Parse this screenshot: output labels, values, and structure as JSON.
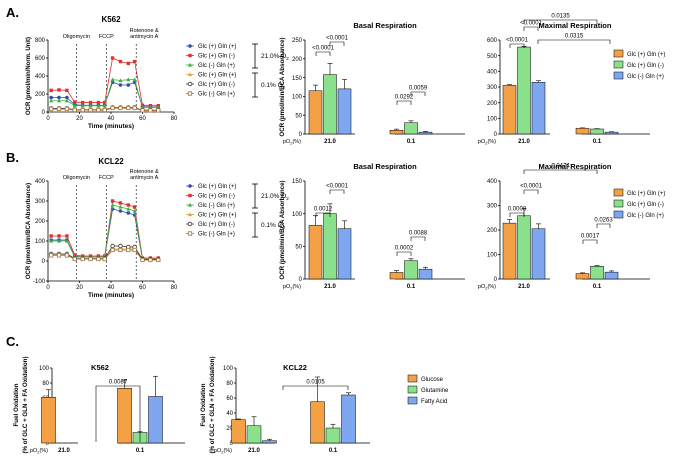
{
  "panels": {
    "A": {
      "label": "A.",
      "cell_line": "K562",
      "timecourse": {
        "type": "line",
        "ylabel": "OCR (pmol/min/Norm. Unit)",
        "xlabel": "Time (minutes)",
        "ylim": [
          0,
          800
        ],
        "yticks": [
          0,
          200,
          400,
          600,
          800
        ],
        "xlim": [
          0,
          80
        ],
        "xticks": [
          0,
          20,
          40,
          60,
          80
        ],
        "injections": [
          {
            "label": "Oligomycin",
            "x": 18
          },
          {
            "label": "FCCP",
            "x": 37
          },
          {
            "label": "Rotenone &",
            "label2": "antimycin A",
            "x": 56
          }
        ],
        "x": [
          2,
          7,
          12,
          17,
          22,
          27,
          32,
          36,
          41,
          46,
          51,
          55,
          60,
          65,
          70
        ],
        "series": [
          {
            "name": "Glc (+) Gln (+)",
            "color": "#2f4fa8",
            "marker": "circle",
            "values": [
              160,
              160,
              160,
              80,
              75,
              75,
              75,
              75,
              330,
              300,
              300,
              330,
              60,
              55,
              55
            ]
          },
          {
            "name": "Glc (+) Gln (-)",
            "color": "#e03030",
            "marker": "square",
            "values": [
              240,
              245,
              240,
              110,
              105,
              105,
              105,
              105,
              600,
              560,
              540,
              560,
              75,
              70,
              70
            ]
          },
          {
            "name": "Glc (-) Gln (+)",
            "color": "#3cb043",
            "marker": "triangle",
            "values": [
              125,
              125,
              125,
              70,
              70,
              70,
              70,
              70,
              360,
              350,
              360,
              360,
              50,
              50,
              50
            ]
          },
          {
            "name": "Glc (+) Gln (+)",
            "color": "#e8a030",
            "marker": "triangle",
            "values": [
              30,
              30,
              30,
              20,
              20,
              20,
              20,
              20,
              40,
              40,
              40,
              40,
              15,
              15,
              15
            ]
          },
          {
            "name": "Glc (+) Gln (-)",
            "color": "#333333",
            "marker": "circle-open",
            "values": [
              40,
              40,
              40,
              25,
              25,
              25,
              25,
              25,
              50,
              50,
              50,
              50,
              20,
              20,
              20
            ]
          },
          {
            "name": "Glc (-) Gln (+)",
            "color": "#a0703a",
            "marker": "square-open",
            "values": [
              35,
              35,
              35,
              22,
              22,
              22,
              22,
              22,
              45,
              45,
              45,
              45,
              18,
              18,
              18
            ]
          }
        ],
        "bracket_labels": [
          "21.0% O",
          "0.1% O"
        ],
        "o2_sub": "2"
      },
      "basal": {
        "type": "bar",
        "title": "Basal Respiration",
        "ylabel": "OCR (pmol/min/BCA Absorbance)",
        "ylim": [
          0,
          250
        ],
        "yticks": [
          0,
          50,
          100,
          150,
          200,
          250
        ],
        "groups": [
          "21.0",
          "0.1"
        ],
        "po2_label": "pO (%)",
        "series": [
          {
            "name": "Glc (+) Gln (+)",
            "color": "#f4a146",
            "values": [
              115,
              10
            ],
            "errors": [
              15,
              3
            ]
          },
          {
            "name": "Glc (+) Gln (-)",
            "color": "#8be08b",
            "values": [
              158,
              30
            ],
            "errors": [
              30,
              5
            ]
          },
          {
            "name": "Glc (-) Gln (+)",
            "color": "#7fa7ef",
            "values": [
              120,
              5
            ],
            "errors": [
              25,
              2
            ]
          }
        ],
        "annotations": [
          "<0.0001",
          "<0.0001",
          "0.0292",
          "0.0059"
        ]
      },
      "maximal": {
        "type": "bar",
        "title": "Maximal Respiration",
        "ylim": [
          0,
          600
        ],
        "yticks": [
          0,
          100,
          200,
          300,
          400,
          500,
          600
        ],
        "groups": [
          "21.0",
          "0.1"
        ],
        "po2_label": "pO (%)",
        "series": [
          {
            "name": "Glc (+) Gln (+)",
            "color": "#f4a146",
            "values": [
              310,
              37
            ],
            "errors": [
              5,
              2
            ]
          },
          {
            "name": "Glc (+) Gln (-)",
            "color": "#8be08b",
            "values": [
              555,
              32
            ],
            "errors": [
              5,
              2
            ]
          },
          {
            "name": "Glc (-) Gln (+)",
            "color": "#7fa7ef",
            "values": [
              330,
              12
            ],
            "errors": [
              10,
              2
            ]
          }
        ],
        "annotations": [
          "<0.0001",
          "<0.0001",
          "0.0135",
          "0.0315"
        ]
      }
    },
    "B": {
      "label": "B.",
      "cell_line": "KCL22",
      "timecourse": {
        "type": "line",
        "ylabel": "OCR (pmol/min/BCA Absorbance)",
        "xlabel": "Time (minutes)",
        "ylim": [
          -100,
          400
        ],
        "yticks": [
          -100,
          0,
          100,
          200,
          300,
          400
        ],
        "xlim": [
          0,
          80
        ],
        "xticks": [
          0,
          20,
          40,
          60,
          80
        ],
        "injections": [
          {
            "label": "Oligomycin",
            "x": 18
          },
          {
            "label": "FCCP",
            "x": 37
          },
          {
            "label": "Rotenone &",
            "label2": "antimycin A",
            "x": 56
          }
        ],
        "x": [
          2,
          7,
          12,
          17,
          22,
          27,
          32,
          36,
          41,
          46,
          51,
          55,
          60,
          65,
          70
        ],
        "series": [
          {
            "name": "Glc (+) Gln (+)",
            "color": "#2f4fa8",
            "marker": "circle",
            "values": [
              105,
              105,
              105,
              25,
              20,
              20,
              20,
              20,
              260,
              250,
              240,
              230,
              10,
              10,
              10
            ]
          },
          {
            "name": "Glc (+) Gln (-)",
            "color": "#e03030",
            "marker": "square",
            "values": [
              125,
              125,
              125,
              30,
              25,
              25,
              25,
              25,
              300,
              290,
              280,
              270,
              15,
              15,
              15
            ]
          },
          {
            "name": "Glc (-) Gln (+)",
            "color": "#3cb043",
            "marker": "triangle",
            "values": [
              100,
              100,
              100,
              20,
              20,
              20,
              20,
              20,
              280,
              270,
              260,
              250,
              10,
              10,
              10
            ]
          },
          {
            "name": "Glc (+) Gln (+)",
            "color": "#e8a030",
            "marker": "triangle",
            "values": [
              30,
              30,
              30,
              10,
              10,
              10,
              10,
              10,
              60,
              60,
              60,
              60,
              5,
              5,
              5
            ]
          },
          {
            "name": "Glc (+) Gln (-)",
            "color": "#333333",
            "marker": "circle-open",
            "values": [
              35,
              35,
              35,
              12,
              12,
              12,
              12,
              12,
              75,
              75,
              70,
              70,
              8,
              8,
              8
            ]
          },
          {
            "name": "Glc (-) Gln (+)",
            "color": "#a0703a",
            "marker": "square-open",
            "values": [
              28,
              28,
              28,
              10,
              10,
              10,
              10,
              10,
              55,
              55,
              55,
              55,
              5,
              5,
              5
            ]
          }
        ],
        "bracket_labels": [
          "21.0% O",
          "0.1% O"
        ],
        "o2_sub": "2"
      },
      "basal": {
        "type": "bar",
        "title": "Basal Respiration",
        "ylabel": "OCR (pmol/min/BCA Absorbance)",
        "ylim": [
          0,
          150
        ],
        "yticks": [
          0,
          50,
          100,
          150
        ],
        "groups": [
          "21.0",
          "0.1"
        ],
        "po2_label": "pO (%)",
        "series": [
          {
            "name": "Glc (+) Gln (+)",
            "color": "#f4a146",
            "values": [
              82,
              10
            ],
            "errors": [
              15,
              3
            ]
          },
          {
            "name": "Glc (+) Gln (-)",
            "color": "#8be08b",
            "values": [
              100,
              28
            ],
            "errors": [
              15,
              3
            ]
          },
          {
            "name": "Glc (-) Gln (+)",
            "color": "#7fa7ef",
            "values": [
              77,
              15
            ],
            "errors": [
              12,
              3
            ]
          }
        ],
        "annotations": [
          "0.0012",
          "<0.0001",
          "0.0002",
          "0.0088"
        ]
      },
      "maximal": {
        "type": "bar",
        "title": "Maximal Respiration",
        "ylim": [
          0,
          400
        ],
        "yticks": [
          0,
          100,
          200,
          300,
          400
        ],
        "groups": [
          "21.0",
          "0.1"
        ],
        "po2_label": "pO (%)",
        "series": [
          {
            "name": "Glc (+) Gln (+)",
            "color": "#f4a146",
            "values": [
              228,
              22
            ],
            "errors": [
              15,
              3
            ]
          },
          {
            "name": "Glc (+) Gln (-)",
            "color": "#8be08b",
            "values": [
              258,
              52
            ],
            "errors": [
              30,
              3
            ]
          },
          {
            "name": "Glc (-) Gln (+)",
            "color": "#7fa7ef",
            "values": [
              205,
              28
            ],
            "errors": [
              20,
              5
            ]
          }
        ],
        "annotations": [
          "0.0474",
          "0.0008",
          "<0.0001",
          "0.0017",
          "0.0263"
        ]
      }
    },
    "C": {
      "label": "C.",
      "ylabel_line1": "Fuel Oxidation",
      "ylabel_line2": "(% of GLC + GLN + FA Oxidation)",
      "k562": {
        "type": "bar",
        "title": "K562",
        "ylim": [
          0,
          100
        ],
        "yticks": [
          0,
          20,
          40,
          60,
          80,
          100
        ],
        "groups": [
          "21.0",
          "0.1"
        ],
        "po2_label": "pO (%)",
        "series": [
          {
            "name": "Glucose",
            "color": "#f4a146",
            "values": [
              61,
              73
            ],
            "errors": [
              10,
              11
            ]
          },
          {
            "name": "Glutamine",
            "color": "#8be08b",
            "values": [
              0,
              14
            ],
            "errors": [
              0,
              1
            ]
          },
          {
            "name": "Fatty Acid",
            "color": "#7fa7ef",
            "values": [
              0,
              62
            ],
            "errors": [
              0,
              27
            ]
          }
        ],
        "annotations": [
          "0.0087"
        ]
      },
      "kcl22": {
        "type": "bar",
        "title": "KCL22",
        "ylim": [
          0,
          100
        ],
        "yticks": [
          0,
          20,
          40,
          60,
          80,
          100
        ],
        "groups": [
          "21.0",
          "0.1"
        ],
        "po2_label": "pO (%)",
        "series": [
          {
            "name": "Glucose",
            "color": "#f4a146",
            "values": [
              31,
              55
            ],
            "errors": [
              1,
              33
            ]
          },
          {
            "name": "Glutamine",
            "color": "#8be08b",
            "values": [
              23,
              20
            ],
            "errors": [
              12,
              5
            ]
          },
          {
            "name": "Fatty Acid",
            "color": "#7fa7ef",
            "values": [
              3,
              64
            ],
            "errors": [
              2,
              3
            ]
          }
        ],
        "annotations": [
          "0.0105"
        ]
      },
      "legend": [
        "Glucose",
        "Glutamine",
        "Fatty Acid"
      ]
    }
  }
}
